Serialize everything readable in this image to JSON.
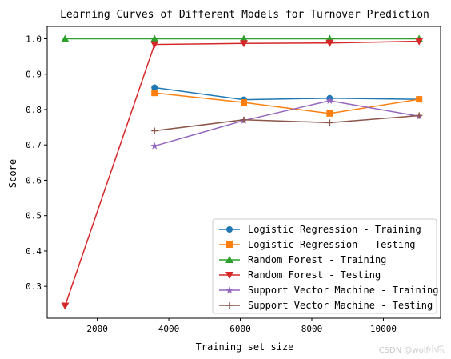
{
  "chart_data": {
    "type": "line",
    "title": "Learning Curves of Different Models for Turnover Prediction",
    "xlabel": "Training set size",
    "ylabel": "Score",
    "xlim": [
      600,
      11600
    ],
    "ylim": [
      0.21,
      1.035
    ],
    "xticks": [
      2000,
      4000,
      6000,
      8000,
      10000
    ],
    "yticks": [
      0.3,
      0.4,
      0.5,
      0.6,
      0.7,
      0.8,
      0.9,
      1.0
    ],
    "xtick_labels": [
      "2000",
      "4000",
      "6000",
      "8000",
      "10000"
    ],
    "ytick_labels": [
      "0.3",
      "0.4",
      "0.5",
      "0.6",
      "0.7",
      "0.8",
      "0.9",
      "1.0"
    ],
    "grid": false,
    "legend_position": "lower-right",
    "series": [
      {
        "name": "Logistic Regression - Training",
        "color": "#1f77b4",
        "marker": "circle",
        "x": [
          3600,
          6100,
          8500,
          11000
        ],
        "y": [
          0.862,
          0.828,
          0.832,
          0.829
        ]
      },
      {
        "name": "Logistic Regression - Testing",
        "color": "#ff7f0e",
        "marker": "square",
        "x": [
          3600,
          6100,
          8500,
          11000
        ],
        "y": [
          0.847,
          0.82,
          0.789,
          0.829
        ]
      },
      {
        "name": "Random Forest - Training",
        "color": "#2ca02c",
        "marker": "triangle-up",
        "x": [
          1100,
          3600,
          6100,
          8500,
          11000
        ],
        "y": [
          1.0,
          1.0,
          1.0,
          1.0,
          1.0
        ]
      },
      {
        "name": "Random Forest - Testing",
        "color": "#d62728",
        "marker": "triangle-down",
        "x": [
          1100,
          3600,
          6100,
          8500,
          11000
        ],
        "y": [
          0.245,
          0.984,
          0.987,
          0.988,
          0.993
        ]
      },
      {
        "name": "Support Vector Machine - Training",
        "color": "#9467bd",
        "marker": "star",
        "x": [
          3600,
          6100,
          8500,
          11000
        ],
        "y": [
          0.697,
          0.769,
          0.825,
          0.781
        ]
      },
      {
        "name": "Support Vector Machine - Testing",
        "color": "#8c564b",
        "marker": "plus",
        "x": [
          3600,
          6100,
          8500,
          11000
        ],
        "y": [
          0.74,
          0.771,
          0.763,
          0.783
        ]
      }
    ]
  },
  "watermark": "CSDN @wolf小乐"
}
